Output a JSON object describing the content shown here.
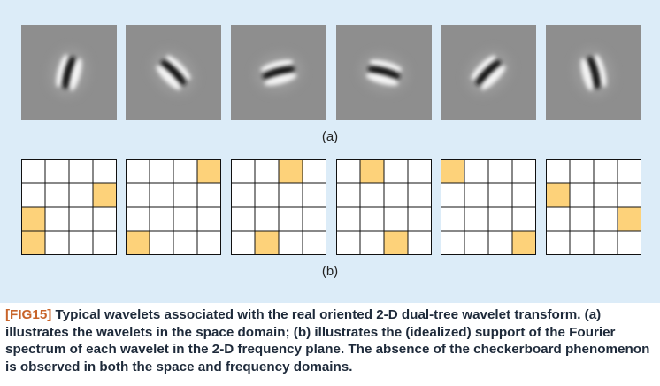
{
  "figure": {
    "label_a": "(a)",
    "label_b": "(b)",
    "wavelets": [
      {
        "orientation_deg": 75
      },
      {
        "orientation_deg": -45
      },
      {
        "orientation_deg": 15
      },
      {
        "orientation_deg": -15
      },
      {
        "orientation_deg": 45
      },
      {
        "orientation_deg": -75
      }
    ],
    "grid_size": 4,
    "highlight_color": "#fdd27a",
    "grid_line_color": "#111111",
    "supports": [
      {
        "cells": [
          [
            1,
            3
          ],
          [
            2,
            0
          ],
          [
            3,
            0
          ]
        ]
      },
      {
        "cells": [
          [
            0,
            3
          ],
          [
            3,
            0
          ]
        ]
      },
      {
        "cells": [
          [
            0,
            2
          ],
          [
            3,
            1
          ]
        ]
      },
      {
        "cells": [
          [
            0,
            1
          ],
          [
            3,
            2
          ]
        ]
      },
      {
        "cells": [
          [
            0,
            0
          ],
          [
            3,
            3
          ]
        ]
      },
      {
        "cells": [
          [
            1,
            0
          ],
          [
            2,
            3
          ]
        ]
      }
    ]
  },
  "caption": {
    "tag": "[FIG15]",
    "text": " Typical wavelets associated with the real oriented 2-D dual-tree wavelet transform.  (a) illustrates the wavelets in the space domain; (b) illustrates the (idealized) support of the Fourier spectrum of each wavelet in the 2-D frequency plane. The absence of the checkerboard phenomenon is observed in both the space and frequency domains."
  }
}
